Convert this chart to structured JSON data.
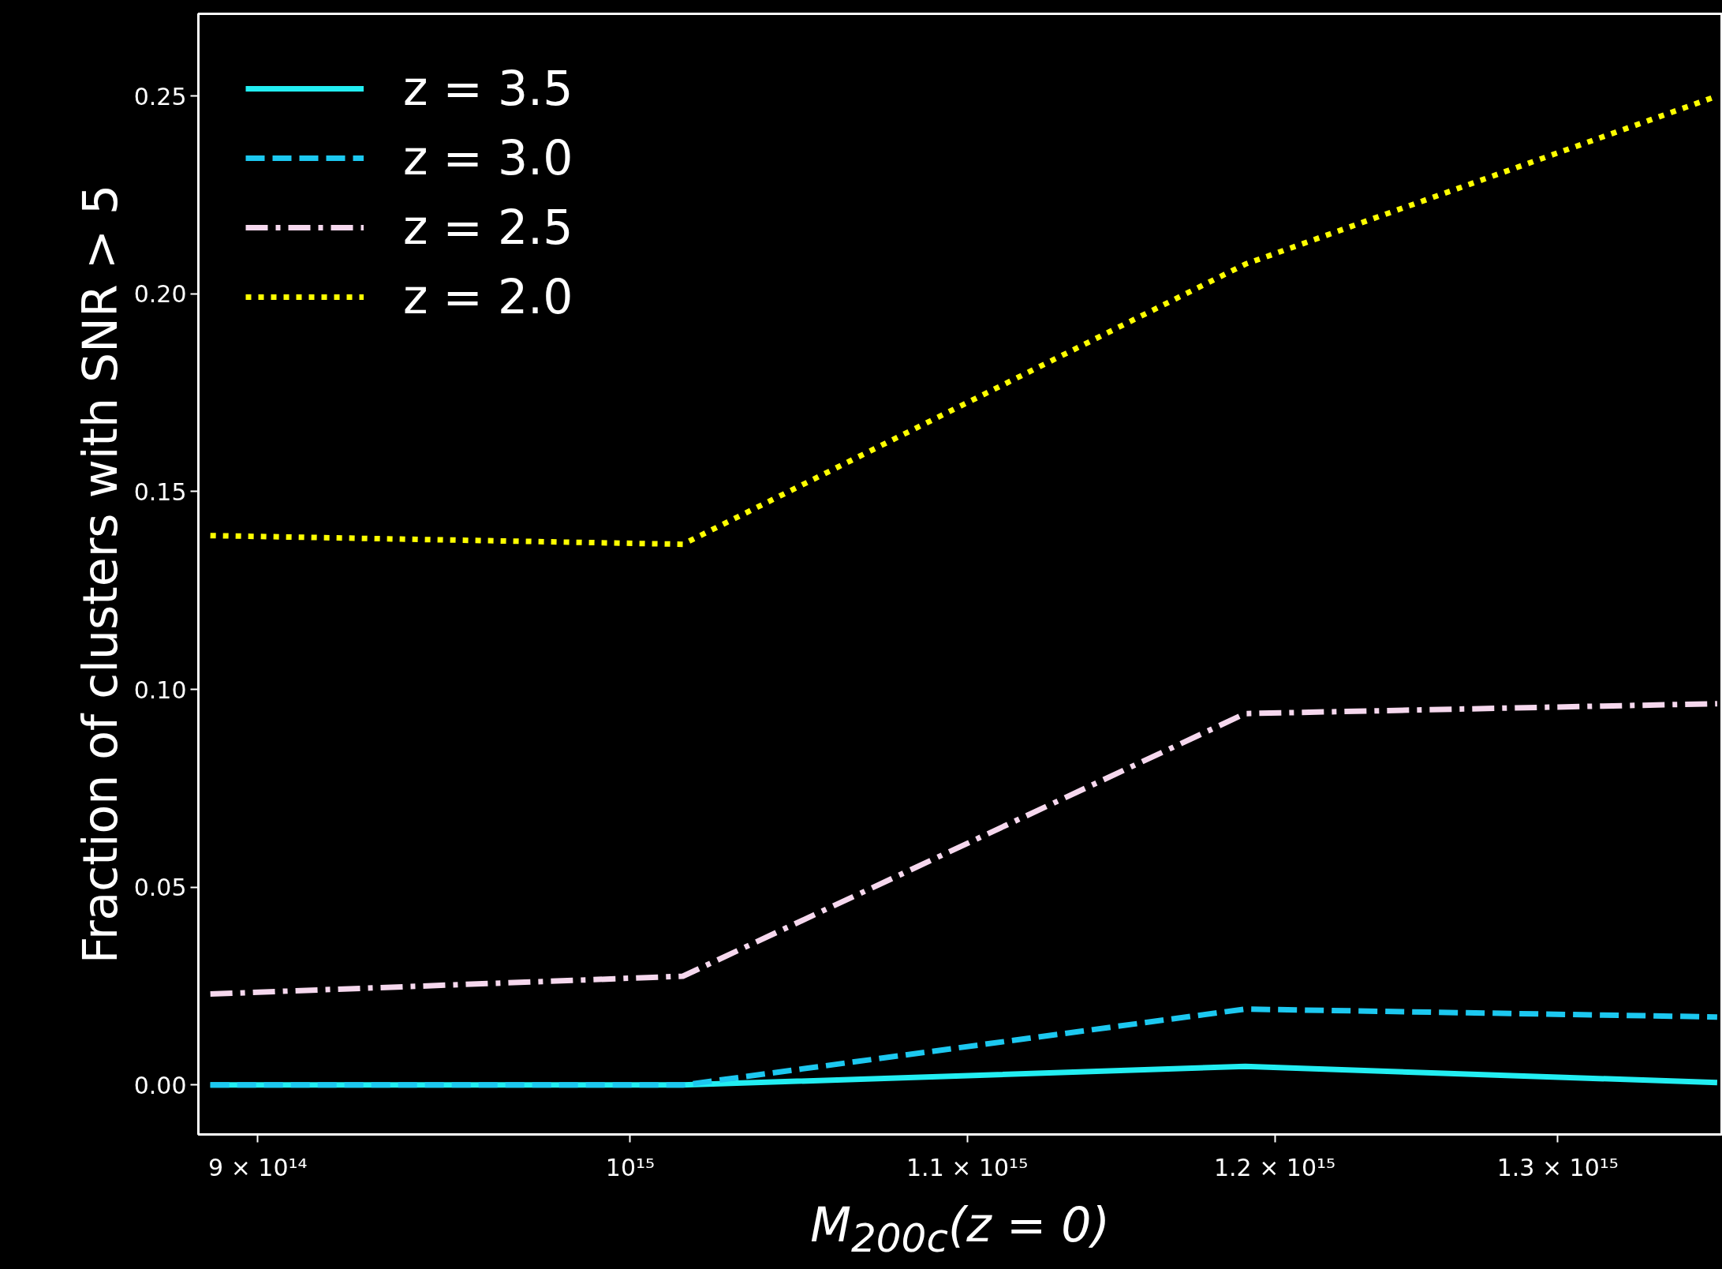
{
  "chart_data": {
    "type": "line",
    "xlabel": "M$_{200c}$(z = 0)",
    "ylabel": "Fraction of clusters with SNR > 5",
    "x": [
      888000000000000.0,
      1015000000000000.0,
      1190000000000000.0,
      1360000000000000.0
    ],
    "series": [
      {
        "name": "z = 3.5",
        "color": "#22eef2",
        "line_style": "solid",
        "values": [
          0.0,
          0.0,
          0.0047,
          0.0006
        ]
      },
      {
        "name": "z = 3.0",
        "color": "#1cc8f0",
        "line_style": "dashed",
        "values": [
          0.0,
          0.0,
          0.0192,
          0.0172
        ]
      },
      {
        "name": "z = 2.5",
        "color": "#f6d8ee",
        "line_style": "dashdot",
        "values": [
          0.023,
          0.0275,
          0.0939,
          0.0964
        ]
      },
      {
        "name": "z = 2.0",
        "color": "#ffff00",
        "line_style": "dotted",
        "values": [
          0.1389,
          0.1367,
          0.2075,
          0.25
        ]
      }
    ],
    "log": "x",
    "xlim": [
      885000000000000.0,
      1362000000000000.0
    ],
    "ylim": [
      -0.0125,
      0.2708
    ],
    "xticks": [
      {
        "value": 900000000000000.0,
        "label": "9 × 10¹⁴"
      },
      {
        "value": 1000000000000000.0,
        "label": "10¹⁵"
      },
      {
        "value": 1100000000000000.0,
        "label": "1.1 × 10¹⁵"
      },
      {
        "value": 1200000000000000.0,
        "label": "1.2 × 10¹⁵"
      },
      {
        "value": 1300000000000000.0,
        "label": "1.3 × 10¹⁵"
      }
    ],
    "yticks": [
      {
        "value": 0,
        "label": "0.00"
      },
      {
        "value": 0.05,
        "label": "0.05"
      },
      {
        "value": 0.1,
        "label": "0.10"
      },
      {
        "value": 0.15,
        "label": "0.15"
      },
      {
        "value": 0.2,
        "label": "0.20"
      },
      {
        "value": 0.25,
        "label": "0.25"
      }
    ],
    "grid": false,
    "legend": "top left",
    "marker": "none"
  }
}
